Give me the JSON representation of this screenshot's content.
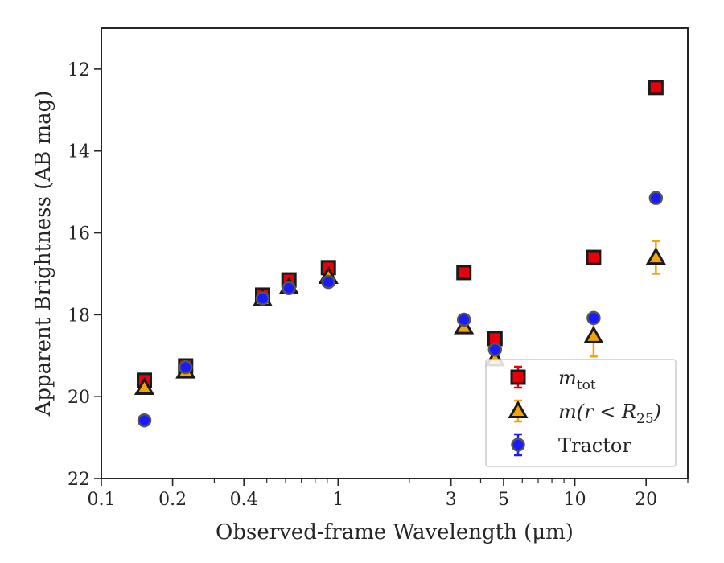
{
  "chart_data": {
    "type": "scatter",
    "title": "",
    "xlabel": "Observed-frame Wavelength (μm)",
    "ylabel": "Apparent Brightness (AB mag)",
    "x_scale": "log",
    "xlim": [
      0.1,
      30
    ],
    "ylim": [
      22,
      11
    ],
    "y_inverted": true,
    "x_ticks": [
      {
        "value": 0.1,
        "label": "0.1"
      },
      {
        "value": 0.2,
        "label": "0.2"
      },
      {
        "value": 0.4,
        "label": "0.4"
      },
      {
        "value": 1,
        "label": "1"
      },
      {
        "value": 3,
        "label": "3"
      },
      {
        "value": 5,
        "label": "5"
      },
      {
        "value": 10,
        "label": "10"
      },
      {
        "value": 20,
        "label": "20"
      }
    ],
    "x_minor_ticks": [
      0.3,
      0.5,
      0.6,
      0.7,
      0.8,
      0.9,
      2,
      4,
      6,
      7,
      8,
      9,
      30
    ],
    "y_ticks": [
      {
        "value": 12,
        "label": "12"
      },
      {
        "value": 14,
        "label": "14"
      },
      {
        "value": 16,
        "label": "16"
      },
      {
        "value": 18,
        "label": "18"
      },
      {
        "value": 20,
        "label": "20"
      },
      {
        "value": 22,
        "label": "22"
      }
    ],
    "legend_position": "lower-right",
    "series": [
      {
        "name": "m_tot",
        "legend_label": "m",
        "legend_sub": "tot",
        "marker": "square",
        "color": "#e8000b",
        "edge_color": "#1a1a1a",
        "points": [
          {
            "x": 0.152,
            "y": 19.6,
            "err": 0.05
          },
          {
            "x": 0.227,
            "y": 19.25,
            "err": 0.05
          },
          {
            "x": 0.48,
            "y": 17.52,
            "err": 0.05
          },
          {
            "x": 0.62,
            "y": 17.15,
            "err": 0.05
          },
          {
            "x": 0.91,
            "y": 16.85,
            "err": 0.05
          },
          {
            "x": 3.4,
            "y": 16.97,
            "err": 0.05
          },
          {
            "x": 4.6,
            "y": 18.58,
            "err": 0.05
          },
          {
            "x": 12.0,
            "y": 16.6,
            "err": 0.05
          },
          {
            "x": 22.0,
            "y": 12.45,
            "err": 0.05
          }
        ]
      },
      {
        "name": "m(r < R_25)",
        "legend_label": "m(r < R",
        "legend_sub": "25",
        "legend_suffix": ")",
        "marker": "triangle",
        "color": "#f5a300",
        "edge_color": "#1a1a1a",
        "points": [
          {
            "x": 0.152,
            "y": 19.78,
            "err": 0.05
          },
          {
            "x": 0.227,
            "y": 19.38,
            "err": 0.05
          },
          {
            "x": 0.48,
            "y": 17.62,
            "err": 0.05
          },
          {
            "x": 0.62,
            "y": 17.32,
            "err": 0.05
          },
          {
            "x": 0.91,
            "y": 17.07,
            "err": 0.05
          },
          {
            "x": 3.4,
            "y": 18.3,
            "err": 0.05
          },
          {
            "x": 4.6,
            "y": 19.08,
            "err": 0.1
          },
          {
            "x": 12.0,
            "y": 18.52,
            "err": 0.5
          },
          {
            "x": 22.0,
            "y": 16.6,
            "err": 0.4
          }
        ]
      },
      {
        "name": "Tractor",
        "legend_label": "Tractor",
        "marker": "circle",
        "color": "#1a1aff",
        "edge_color": "#555555",
        "points": [
          {
            "x": 0.152,
            "y": 20.58,
            "err": 0.05
          },
          {
            "x": 0.227,
            "y": 19.28,
            "err": 0.05
          },
          {
            "x": 0.48,
            "y": 17.6,
            "err": 0.05
          },
          {
            "x": 0.62,
            "y": 17.35,
            "err": 0.05
          },
          {
            "x": 0.91,
            "y": 17.2,
            "err": 0.05
          },
          {
            "x": 3.4,
            "y": 18.12,
            "err": 0.05
          },
          {
            "x": 4.6,
            "y": 18.85,
            "err": 0.1
          },
          {
            "x": 12.0,
            "y": 18.08,
            "err": 0.05
          },
          {
            "x": 22.0,
            "y": 15.15,
            "err": 0.05
          }
        ]
      }
    ]
  }
}
